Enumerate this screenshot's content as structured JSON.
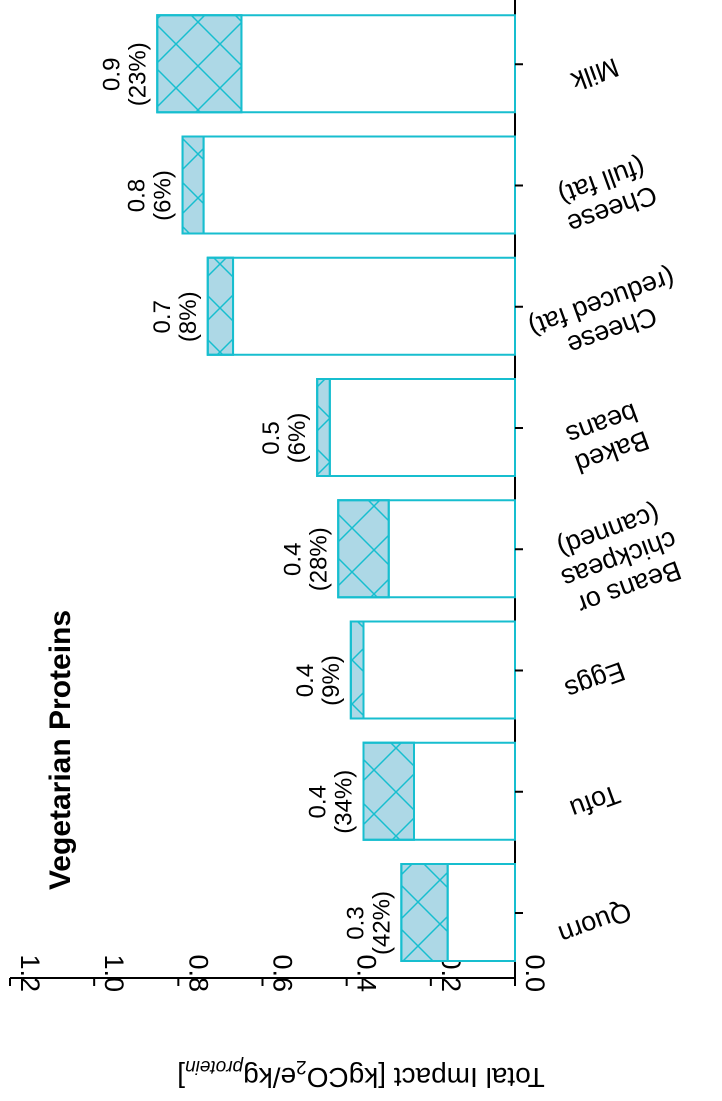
{
  "chart_data": {
    "type": "bar",
    "title": "Vegetarian Proteins",
    "ylabel": {
      "prefix": "Total Impact [kgCO",
      "sub1": "2",
      "mid": "e/kg",
      "sub2": "protein",
      "suffix": "]"
    },
    "ylim": [
      0,
      1.2
    ],
    "yticks": [
      "0.0",
      "0.2",
      "0.4",
      "0.6",
      "0.8",
      "1.0",
      "1.2"
    ],
    "categories": [
      [
        "Quorn"
      ],
      [
        "Tofu"
      ],
      [
        "Eggs"
      ],
      [
        "Beans or",
        "chickpeas",
        "(canned)"
      ],
      [
        "Baked",
        "beans"
      ],
      [
        "Cheese",
        "(reduced fat)"
      ],
      [
        "Cheese",
        "(full fat)"
      ],
      [
        "Milk"
      ]
    ],
    "series": [
      {
        "values": [
          0.27,
          0.36,
          0.39,
          0.42,
          0.47,
          0.73,
          0.79,
          0.85
        ]
      },
      {
        "values": [
          0.11,
          0.12,
          0.03,
          0.12,
          0.03,
          0.06,
          0.05,
          0.2
        ]
      }
    ],
    "data_labels": [
      {
        "value": "0.3",
        "share": "(42%)"
      },
      {
        "value": "0.4",
        "share": "(34%)"
      },
      {
        "value": "0.4",
        "share": "(9%)"
      },
      {
        "value": "0.4",
        "share": "(28%)"
      },
      {
        "value": "0.5",
        "share": "(6%)"
      },
      {
        "value": "0.7",
        "share": "(8%)"
      },
      {
        "value": "0.8",
        "share": "(6%)"
      },
      {
        "value": "0.9",
        "share": "(23%)"
      }
    ],
    "colors": {
      "edge": "#17becf",
      "fill": "#add8e6",
      "axis": "#000000"
    }
  }
}
